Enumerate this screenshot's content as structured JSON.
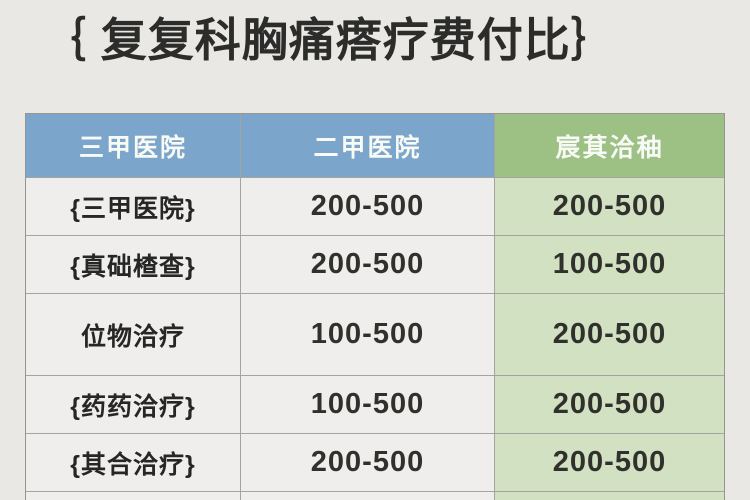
{
  "title": {
    "text": "｛ 复复科胸痛瘩疗费付比｝"
  },
  "chart_data": {
    "type": "table",
    "title": "复复科胸痛瘩疗费付比",
    "columns": [
      "三甲医院",
      "二甲医院",
      "宸萁洽秞"
    ],
    "rows": [
      [
        "{三甲医院}",
        "200-500",
        "200-500"
      ],
      [
        "{真础楂查}",
        "200-500",
        "100-500"
      ],
      [
        "位物洽疗",
        "100-500",
        "200-500"
      ],
      [
        "{药药洽疗}",
        "100-500",
        "200-500"
      ],
      [
        "{其合洽疗}",
        "200-500",
        "200-500"
      ]
    ],
    "layout": {
      "header_row": true,
      "third_column_highlight": "green",
      "bottom_row_clipped": true
    }
  },
  "colors": {
    "background": "#e9e8e5",
    "header_blue": "#7ca5cb",
    "header_green": "#9dc084",
    "cell_green": "#d2e1c1",
    "cell_gray": "#efeeec",
    "border_color": "#a4a49f",
    "title_color": "#2c2c2a",
    "number_dark": "#30302d",
    "number_green": "#35432c",
    "header_text": "#f8faf6"
  }
}
